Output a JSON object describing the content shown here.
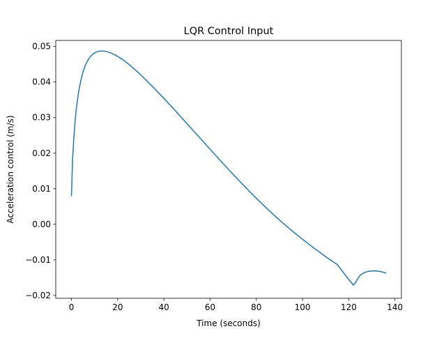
{
  "chart_data": {
    "type": "line",
    "title": "LQR Control Input",
    "xlabel": "Time (seconds)",
    "ylabel": "Acceleration control (m/s)",
    "xlim": [
      -6.8,
      142.8
    ],
    "ylim": [
      -0.0208,
      0.0517
    ],
    "xticks": [
      0,
      20,
      40,
      60,
      80,
      100,
      120,
      140
    ],
    "xtick_labels": [
      "0",
      "20",
      "40",
      "60",
      "80",
      "100",
      "120",
      "140"
    ],
    "yticks": [
      -0.02,
      -0.01,
      0.0,
      0.01,
      0.02,
      0.03,
      0.04,
      0.05
    ],
    "ytick_labels": [
      "−0.02",
      "−0.01",
      "0.00",
      "0.01",
      "0.02",
      "0.03",
      "0.04",
      "0.05"
    ],
    "grid": false,
    "legend": "none",
    "series": [
      {
        "color": "#1f77b4",
        "x": [
          0,
          0.5,
          1,
          1.5,
          2,
          3,
          4,
          5,
          6,
          7,
          8,
          9,
          10,
          11,
          12,
          13,
          14,
          15,
          16,
          18,
          20,
          22,
          25,
          28,
          30,
          35,
          40,
          45,
          50,
          55,
          60,
          65,
          70,
          75,
          80,
          85,
          90,
          95,
          100,
          105,
          110,
          115,
          120,
          122,
          123,
          124,
          125,
          126,
          128,
          130,
          132,
          134,
          136
        ],
        "y": [
          0.0081,
          0.0185,
          0.024,
          0.0285,
          0.032,
          0.0368,
          0.0403,
          0.0428,
          0.0447,
          0.046,
          0.047,
          0.0477,
          0.0482,
          0.0485,
          0.0487,
          0.0487,
          0.0487,
          0.0486,
          0.0484,
          0.0479,
          0.0472,
          0.0464,
          0.0449,
          0.0432,
          0.042,
          0.0388,
          0.0354,
          0.0319,
          0.0283,
          0.0247,
          0.0211,
          0.0175,
          0.014,
          0.0106,
          0.0073,
          0.0042,
          0.0012,
          -0.0016,
          -0.0042,
          -0.0067,
          -0.0091,
          -0.0113,
          -0.0155,
          -0.0171,
          -0.0163,
          -0.0152,
          -0.0143,
          -0.0138,
          -0.0133,
          -0.0131,
          -0.0131,
          -0.0133,
          -0.0137
        ]
      }
    ]
  }
}
